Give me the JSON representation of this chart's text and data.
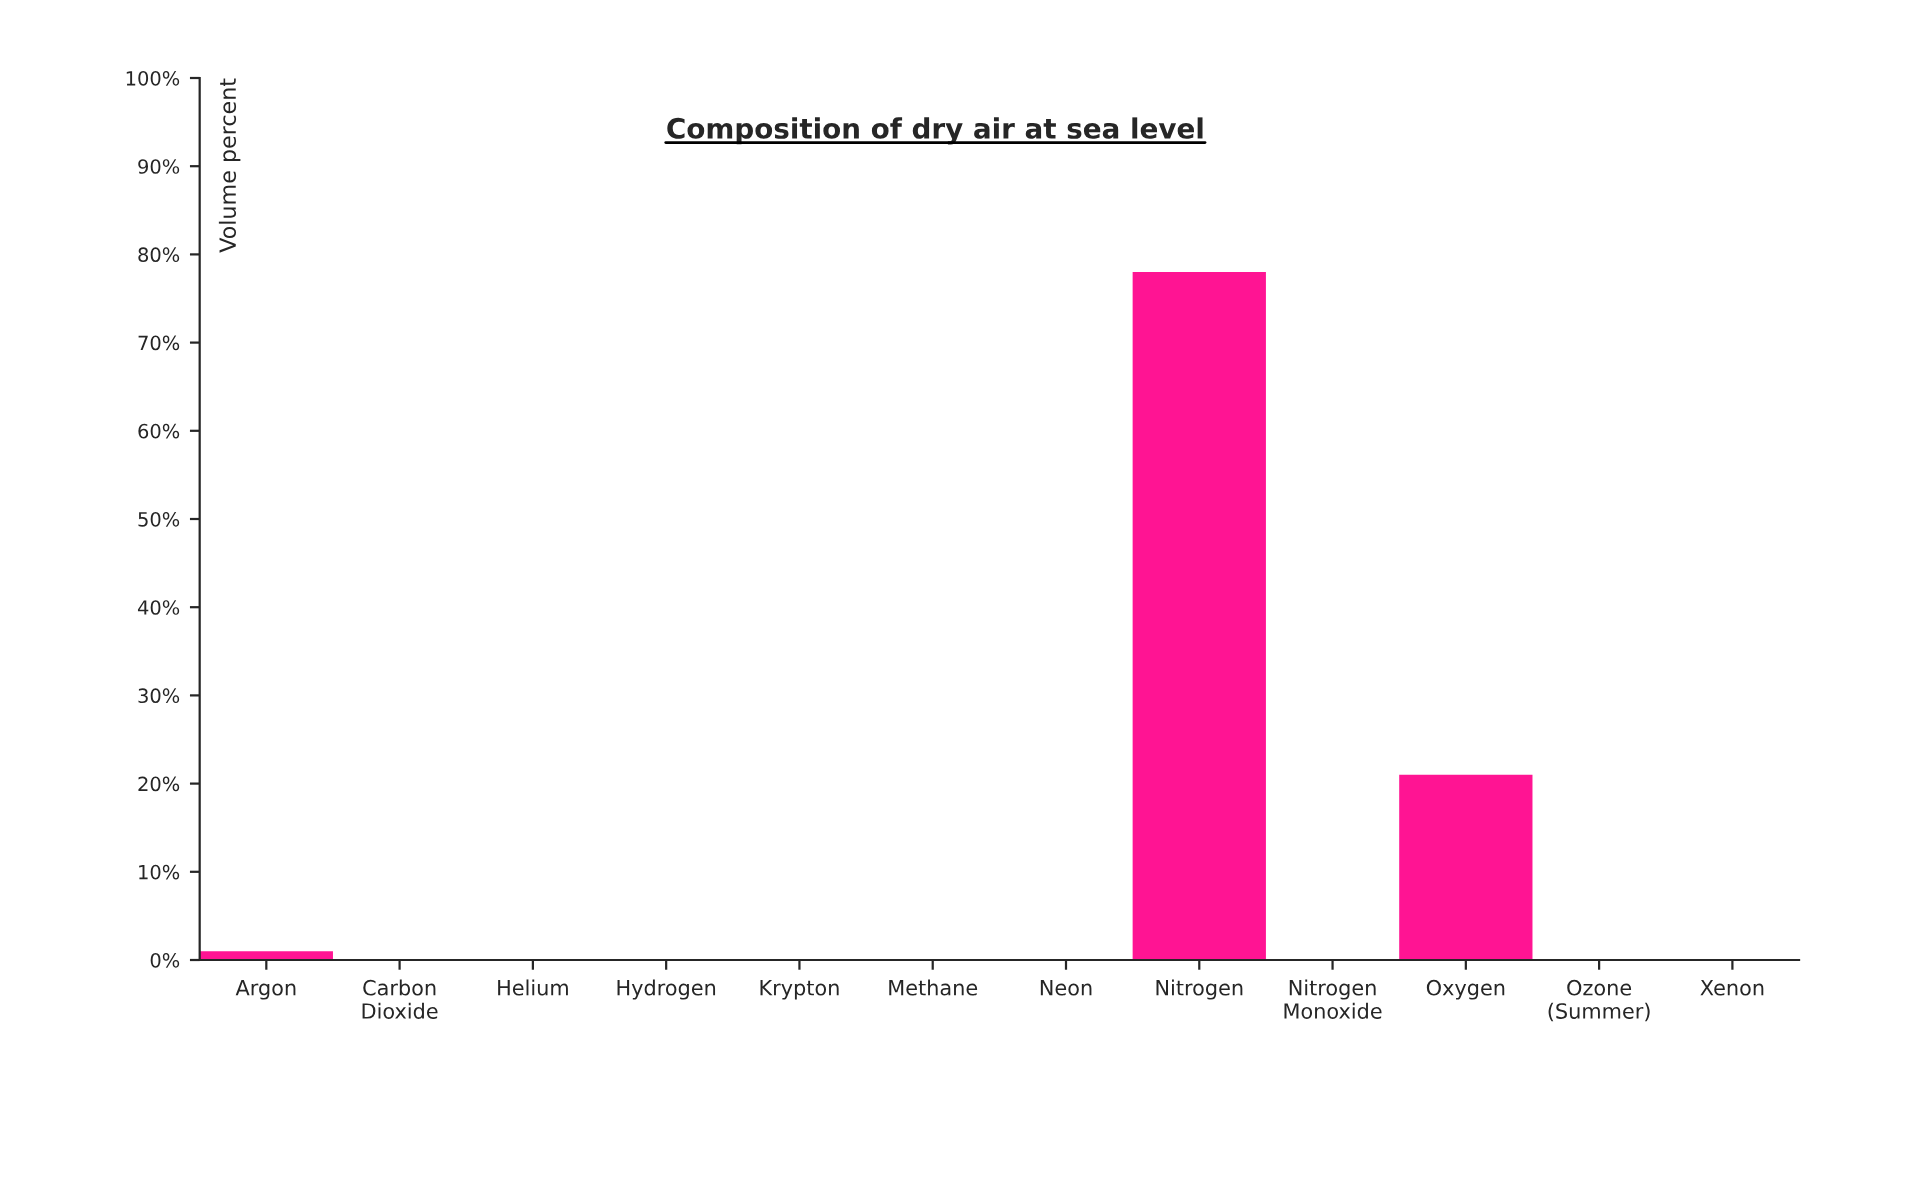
{
  "chart_data": {
    "type": "bar",
    "title": "Composition of dry air at sea level",
    "ylabel": "Volume percent",
    "categories": [
      "Argon",
      "Carbon Dioxide",
      "Helium",
      "Hydrogen",
      "Krypton",
      "Methane",
      "Neon",
      "Nitrogen",
      "Nitrogen Monoxide",
      "Oxygen",
      "Ozone (Summer)",
      "Xenon"
    ],
    "values": [
      1,
      0,
      0,
      0,
      0,
      0,
      0,
      78,
      0,
      21,
      0,
      0
    ],
    "color": "#ff1493",
    "ylim": [
      0,
      100
    ],
    "yticks": [
      {
        "value": 0,
        "label": "0%"
      },
      {
        "value": 10,
        "label": "10%"
      },
      {
        "value": 20,
        "label": "20%"
      },
      {
        "value": 30,
        "label": "30%"
      },
      {
        "value": 40,
        "label": "40%"
      },
      {
        "value": 50,
        "label": "50%"
      },
      {
        "value": 60,
        "label": "60%"
      },
      {
        "value": 70,
        "label": "70%"
      },
      {
        "value": 80,
        "label": "80%"
      },
      {
        "value": 90,
        "label": "90%"
      },
      {
        "value": 100,
        "label": "100%"
      }
    ],
    "grid": false,
    "legend": false
  }
}
